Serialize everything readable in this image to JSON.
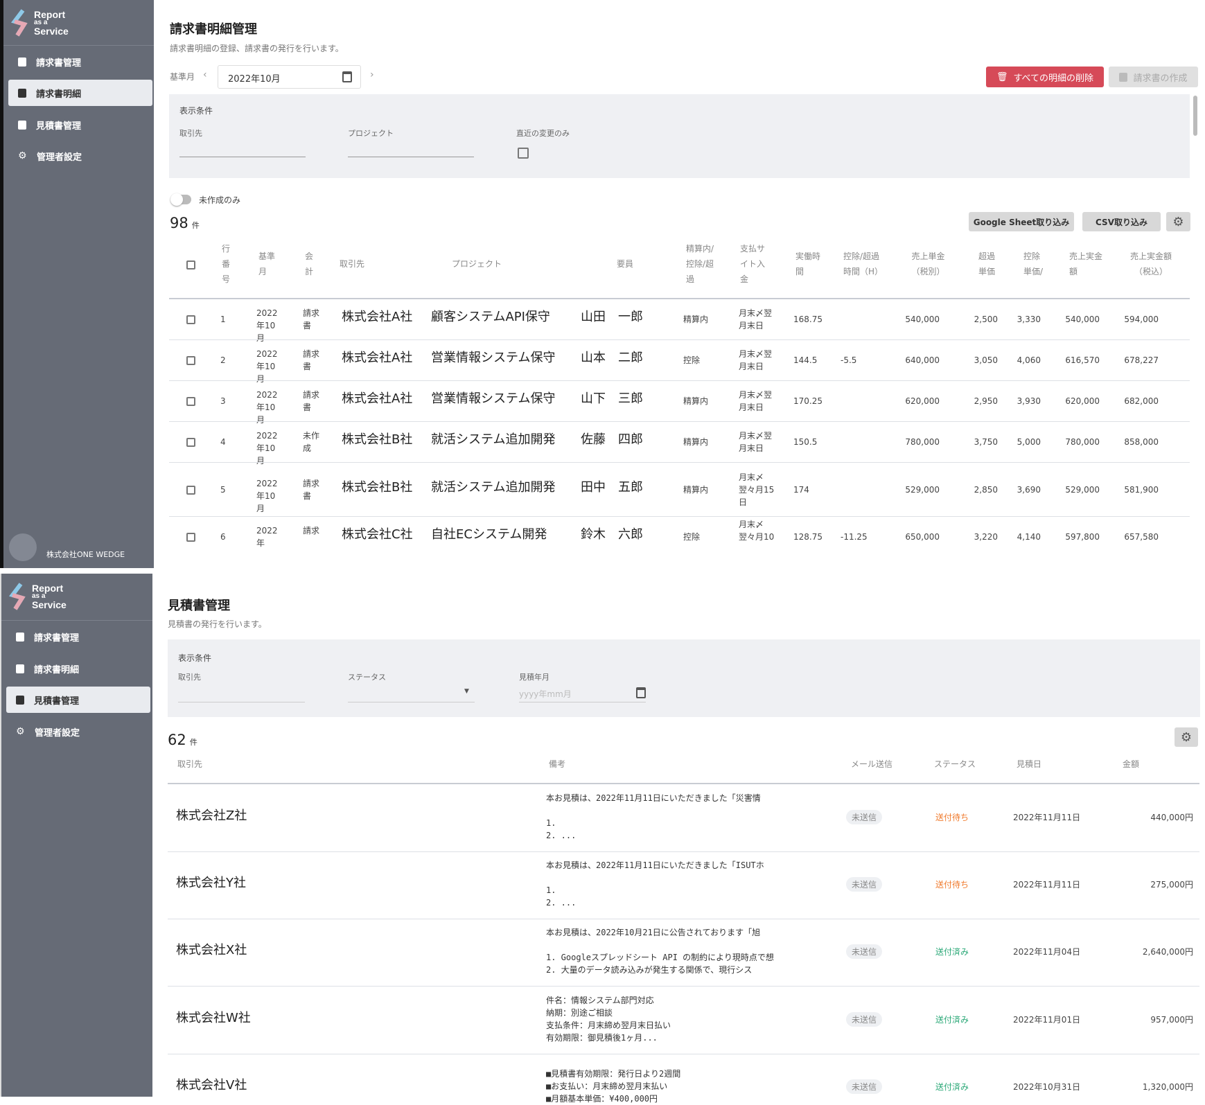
{
  "brand": {
    "line1": "Report",
    "line2": "as a",
    "line3": "Service"
  },
  "sidebar": {
    "items": [
      {
        "label": "請求書管理"
      },
      {
        "label": "請求書明細"
      },
      {
        "label": "見積書管理"
      },
      {
        "label": "管理者設定"
      }
    ],
    "company": "株式会社ONE WEDGE"
  },
  "invoice_details": {
    "title": "請求書明細管理",
    "subtitle": "請求書明細の登録、請求書の発行を行います。",
    "month_label": "基準月",
    "month_value": "2022年10月",
    "delete_all_label": "すべての明細の削除",
    "create_invoice_label": "請求書の作成",
    "filter": {
      "heading": "表示条件",
      "client_label": "取引先",
      "project_label": "プロジェクト",
      "recent_label": "直近の変更のみ"
    },
    "toggle_label": "未作成のみ",
    "count": "98",
    "count_unit": "件",
    "google_sheet_label": "Google Sheet取り込み",
    "csv_label": "CSV取り込み",
    "headers": [
      "行番号",
      "基準月",
      "会計",
      "取引先",
      "プロジェクト",
      "要員",
      "精算内/控除/超過",
      "支払サイト入金",
      "実働時間",
      "控除/超過時間（H）",
      "売上単金（税別）",
      "超過単価",
      "控除単価/",
      "売上実金額",
      "売上実金額（税込）"
    ],
    "rows": [
      {
        "no": "1",
        "month": "2022年10月",
        "acct": "請求書",
        "client": "株式会社A社",
        "project": "顧客システムAPI保守",
        "member": "山田　一郎",
        "settle": "精算内",
        "pay": "月末〆翌月末日",
        "hours": "168.75",
        "diff": "",
        "unit": "540,000",
        "over": "2,500",
        "deduct": "3,330",
        "sales": "540,000",
        "tax": "594,000"
      },
      {
        "no": "2",
        "month": "2022年10月",
        "acct": "請求書",
        "client": "株式会社A社",
        "project": "営業情報システム保守",
        "member": "山本　二郎",
        "settle": "控除",
        "pay": "月末〆翌月末日",
        "hours": "144.5",
        "diff": "-5.5",
        "unit": "640,000",
        "over": "3,050",
        "deduct": "4,060",
        "sales": "616,570",
        "tax": "678,227"
      },
      {
        "no": "3",
        "month": "2022年10月",
        "acct": "請求書",
        "client": "株式会社A社",
        "project": "営業情報システム保守",
        "member": "山下　三郎",
        "settle": "精算内",
        "pay": "月末〆翌月末日",
        "hours": "170.25",
        "diff": "",
        "unit": "620,000",
        "over": "2,950",
        "deduct": "3,930",
        "sales": "620,000",
        "tax": "682,000"
      },
      {
        "no": "4",
        "month": "2022年10月",
        "acct": "未作成",
        "client": "株式会社B社",
        "project": "就活システム追加開発",
        "member": "佐藤　四郎",
        "settle": "精算内",
        "pay": "月末〆翌月末日",
        "hours": "150.5",
        "diff": "",
        "unit": "780,000",
        "over": "3,750",
        "deduct": "5,000",
        "sales": "780,000",
        "tax": "858,000"
      },
      {
        "no": "5",
        "month": "2022年10月",
        "acct": "請求書",
        "client": "株式会社B社",
        "project": "就活システム追加開発",
        "member": "田中　五郎",
        "settle": "精算内",
        "pay": "月末〆翌々月15日",
        "hours": "174",
        "diff": "",
        "unit": "529,000",
        "over": "2,850",
        "deduct": "3,690",
        "sales": "529,000",
        "tax": "581,900"
      },
      {
        "no": "6",
        "month": "2022年",
        "acct": "請求",
        "client": "株式会社C社",
        "project": "自社ECシステム開発",
        "member": "鈴木　六郎",
        "settle": "控除",
        "pay": "月末〆翌々月10",
        "hours": "128.75",
        "diff": "-11.25",
        "unit": "650,000",
        "over": "3,220",
        "deduct": "4,140",
        "sales": "597,800",
        "tax": "657,580"
      }
    ]
  },
  "quotes": {
    "title": "見積書管理",
    "subtitle": "見積書の発行を行います。",
    "filter": {
      "heading": "表示条件",
      "client_label": "取引先",
      "status_label": "ステータス",
      "month_label": "見積年月",
      "month_placeholder": "yyyy年mm月"
    },
    "count": "62",
    "count_unit": "件",
    "headers": {
      "client": "取引先",
      "note": "備考",
      "mail": "メール送信",
      "status": "ステータス",
      "date": "見積日",
      "amount": "金額"
    },
    "rows": [
      {
        "client": "株式会社Z社",
        "note": "本お見積は、2022年11月11日にいただきました「災害情\n\n1.\n2. ...",
        "mail": "未送信",
        "status": "送付待ち",
        "date": "2022年11月11日",
        "amount": "440,000円"
      },
      {
        "client": "株式会社Y社",
        "note": "本お見積は、2022年11月11日にいただきました「ISUTホ\n\n1.\n2. ...",
        "mail": "未送信",
        "status": "送付待ち",
        "date": "2022年11月11日",
        "amount": "275,000円"
      },
      {
        "client": "株式会社X社",
        "note": "本お見積は、2022年10月21日に公告されております「旭\n\n1. Googleスプレッドシート API の制約により現時点で想\n2. 大量のデータ読み込みが発生する関係で、現行シス",
        "mail": "未送信",
        "status": "送付済み",
        "date": "2022年11月04日",
        "amount": "2,640,000円"
      },
      {
        "client": "株式会社W社",
        "note": "件名：情報システム部門対応\n納期：別途ご相談\n支払条件：月末締め翌月末日払い\n有効期限：御見積後1ヶ月...",
        "mail": "未送信",
        "status": "送付済み",
        "date": "2022年11月01日",
        "amount": "957,000円"
      },
      {
        "client": "株式会社V社",
        "note": "■見積書有効期限：発行日より2週間\n■お支払い：月末締め翌月末払い\n■月額基本単価：¥400,000円",
        "mail": "未送信",
        "status": "送付済み",
        "date": "2022年10月31日",
        "amount": "1,320,000円"
      }
    ]
  },
  "colors": {
    "danger": "#d64a58",
    "pending": "#f07a2c",
    "sent": "#2aa877",
    "sidebar": "#666b76"
  }
}
